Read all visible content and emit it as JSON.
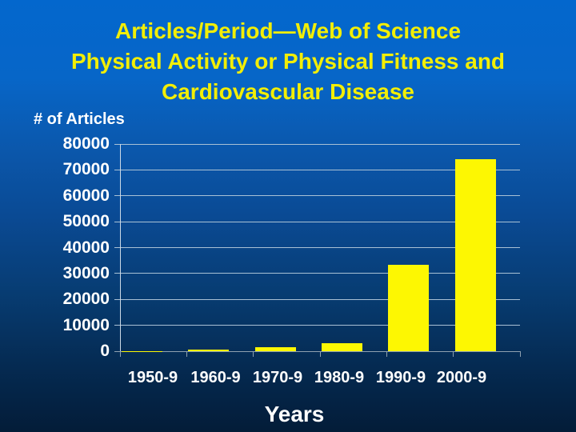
{
  "slide": {
    "title_lines": [
      "Articles/Period—Web of Science",
      "Physical Activity or Physical Fitness and",
      "Cardiovascular Disease"
    ],
    "colors": {
      "background_top": "#0367cd",
      "background_bottom": "#031c38",
      "title_text": "#f2ee06",
      "body_text": "#ffffff",
      "bar_fill": "#fdf702",
      "gridline": "#a9c1d5",
      "y_axis_line": "#cddae6",
      "baseline": "#8fa0b0"
    }
  },
  "chart_data": {
    "type": "bar",
    "title": "Articles/Period—Web of Science Physical Activity or Physical Fitness and Cardiovascular Disease",
    "categories": [
      "1950-9",
      "1960-9",
      "1970-9",
      "1980-9",
      "1990-9",
      "2000-9"
    ],
    "values": [
      100,
      700,
      1400,
      3000,
      33500,
      74000
    ],
    "xlabel": "Years",
    "ylabel": "# of Articles",
    "ylim": [
      0,
      80000
    ],
    "ytick_step": 10000,
    "yticks": [
      0,
      10000,
      20000,
      30000,
      40000,
      50000,
      60000,
      70000,
      80000
    ],
    "grid": "horizontal",
    "legend": "none"
  }
}
